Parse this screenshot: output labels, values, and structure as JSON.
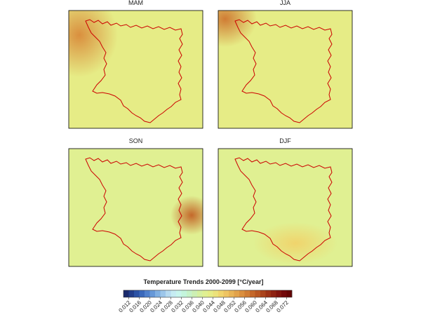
{
  "chart_data": {
    "type": "map",
    "panels": [
      {
        "title": "MAM",
        "background_value": 0.042,
        "hotspot_value": 0.054
      },
      {
        "title": "JJA",
        "background_value": 0.042,
        "hotspot_value": 0.056
      },
      {
        "title": "SON",
        "background_value": 0.04,
        "hotspot_value": 0.06
      },
      {
        "title": "DJF",
        "background_value": 0.04,
        "hotspot_value": 0.046
      }
    ],
    "outline_color": "#cc0000",
    "colorbar": {
      "title": "Temperature Trends 2000-2099   [°C/year]",
      "lim": [
        0.01,
        0.074
      ],
      "ticks": [
        0.012,
        0.016,
        {
          "value": 0.02,
          "label": "0.020"
        },
        0.024,
        0.028,
        0.032,
        0.036,
        {
          "value": 0.04,
          "label": "0.040"
        },
        0.044,
        0.048,
        0.052,
        0.056,
        {
          "value": 0.06,
          "label": "0.060"
        },
        0.064,
        0.068,
        0.072
      ],
      "colormap": [
        "#1a2a6c",
        "#213d8a",
        "#2b52a5",
        "#3a68bb",
        "#4f80cc",
        "#6698d8",
        "#80b0e2",
        "#9cc6ea",
        "#b6daf0",
        "#c6ecf2",
        "#c8f5ec",
        "#c4f5dc",
        "#c6f2c8",
        "#cdf0b4",
        "#d6f0a0",
        "#e0f092",
        "#e6ec86",
        "#ece27a",
        "#f0d46c",
        "#eec462",
        "#e8b456",
        "#e2a24a",
        "#da8f3e",
        "#d07c34",
        "#c4682a",
        "#b85622",
        "#aa441c",
        "#9c3216",
        "#8e2212",
        "#80140e",
        "#72080a",
        "#640404"
      ]
    }
  }
}
